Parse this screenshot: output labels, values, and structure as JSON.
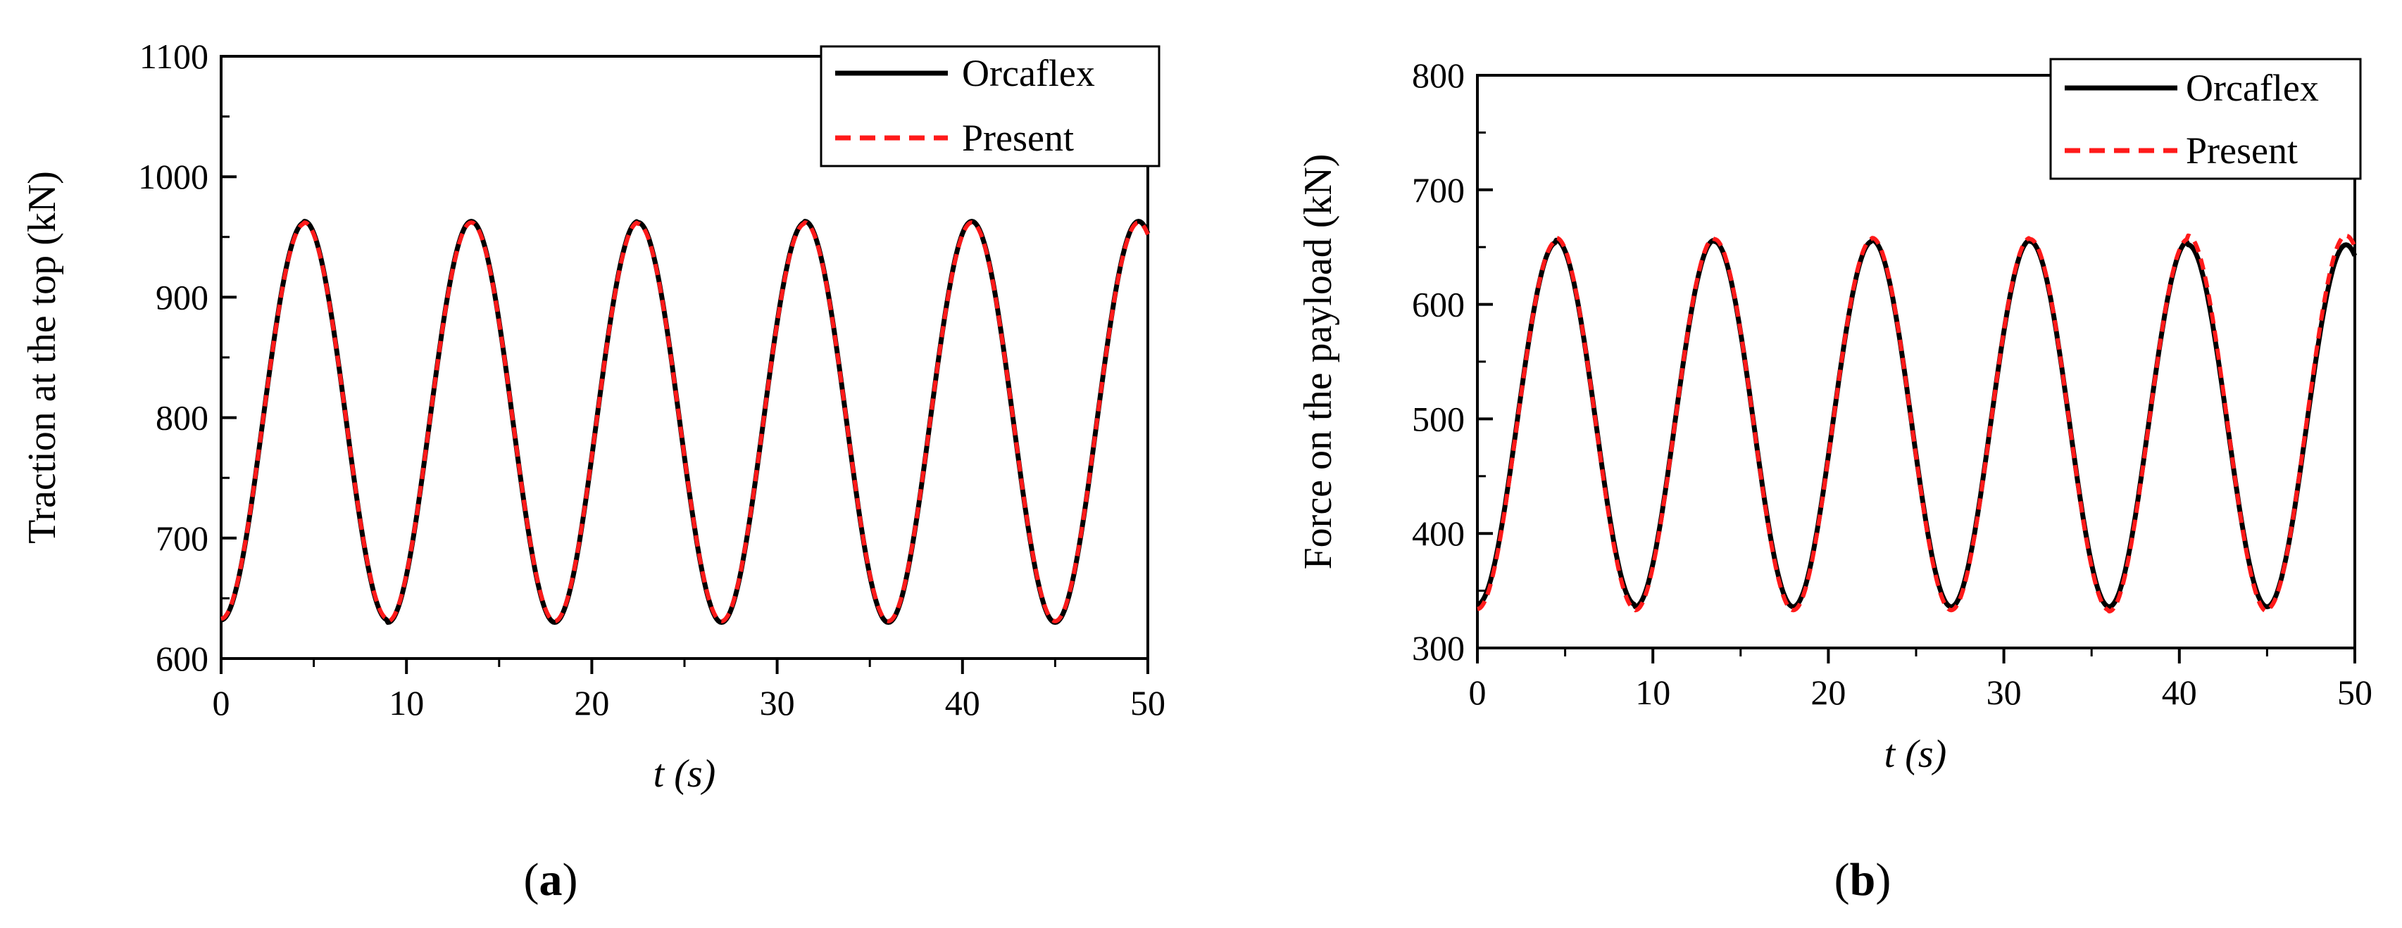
{
  "chart_data": [
    {
      "type": "line",
      "panel": "a",
      "panel_label": "a",
      "xlabel": "t (s)",
      "ylabel": "Traction at the top (kN)",
      "xlim": [
        0,
        50
      ],
      "ylim": [
        600,
        1100
      ],
      "xticks": [
        0,
        10,
        20,
        30,
        40,
        50
      ],
      "yticks": [
        600,
        700,
        800,
        900,
        1000,
        1100
      ],
      "legend_position": "top-right",
      "signal": {
        "form": "offset-sine",
        "mean": 796,
        "amplitude": 166,
        "period": 9.0,
        "phase_start": "minimum",
        "t_start": 0,
        "t_end": 50
      },
      "series": [
        {
          "name": "Orcaflex",
          "color": "#000000",
          "style": "solid",
          "peaks": [
            962,
            963,
            963,
            962,
            963,
            963
          ],
          "troughs": [
            632,
            630,
            630,
            630,
            630,
            630
          ]
        },
        {
          "name": "Present",
          "color": "#ff1a1a",
          "style": "dashed",
          "peaks": [
            961,
            962,
            962,
            961,
            962,
            962
          ],
          "troughs": [
            633,
            631,
            631,
            631,
            631,
            631
          ]
        }
      ]
    },
    {
      "type": "line",
      "panel": "b",
      "panel_label": "b",
      "xlabel": "t (s)",
      "ylabel": "Force on the payload (kN)",
      "xlim": [
        0,
        50
      ],
      "ylim": [
        300,
        800
      ],
      "xticks": [
        0,
        10,
        20,
        30,
        40,
        50
      ],
      "yticks": [
        300,
        400,
        500,
        600,
        700,
        800
      ],
      "legend_position": "top-right",
      "signal": {
        "form": "offset-sine",
        "mean": 496,
        "amplitude": 160,
        "period": 9.0,
        "phase_start": "minimum",
        "t_start": 0,
        "t_end": 50
      },
      "series": [
        {
          "name": "Orcaflex",
          "color": "#000000",
          "style": "solid",
          "peaks": [
            654,
            656,
            655,
            656,
            655,
            652
          ],
          "troughs": [
            338,
            336,
            336,
            336,
            336,
            336
          ]
        },
        {
          "name": "Present",
          "color": "#ff1a1a",
          "style": "dashed",
          "peaks": [
            655,
            658,
            657,
            658,
            657,
            660
          ],
          "troughs": [
            334,
            333,
            333,
            333,
            332,
            334
          ]
        }
      ]
    }
  ]
}
